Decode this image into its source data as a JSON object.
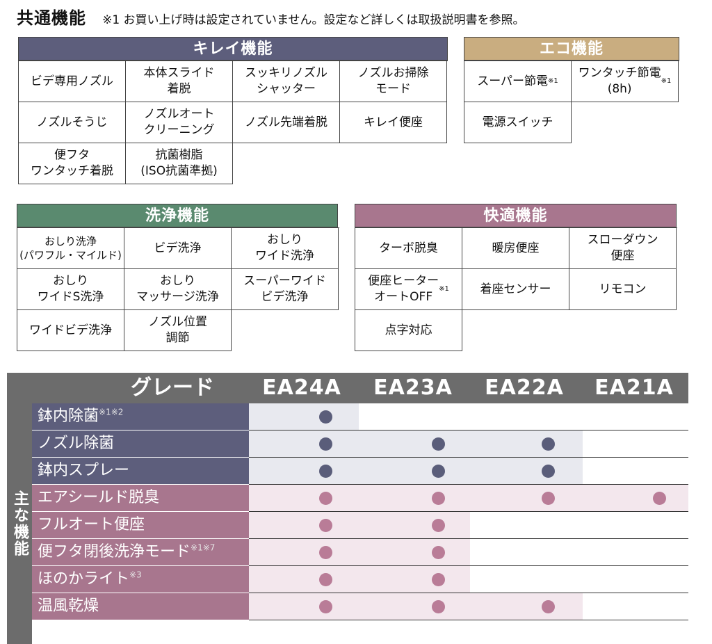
{
  "header": {
    "title": "共通機能",
    "note": "※1 お買い上げ時は設定されていません。設定など詳しくは取扱説明書を参照。"
  },
  "colors": {
    "kirei": "#5d5e7c",
    "eco": "#c9ad80",
    "senjo": "#5a8a6f",
    "kaiteki": "#a8768e",
    "grade_header": "#6c6c6c",
    "dot_blue": "#5a5d7a",
    "dot_pink": "#b97c97",
    "row_bg_blue": "#e8e9ef",
    "row_bg_pink": "#f3e7ed"
  },
  "kirei": {
    "title": "キレイ機能",
    "cells": [
      {
        "text": "ビデ専用ノズル"
      },
      {
        "text": "本体スライド\n着脱"
      },
      {
        "text": "スッキリノズル\nシャッター"
      },
      {
        "text": "ノズルお掃除\nモード"
      },
      {
        "text": "ノズルそうじ"
      },
      {
        "text": "ノズルオート\nクリーニング"
      },
      {
        "text": "ノズル先端着脱"
      },
      {
        "text": "キレイ便座"
      },
      {
        "text": "便フタ\nワンタッチ着脱"
      },
      {
        "text": "抗菌樹脂\n(ISO抗菌準拠)"
      }
    ]
  },
  "eco": {
    "title": "エコ機能",
    "cells": [
      {
        "text": "スーパー節電",
        "sup": "※1"
      },
      {
        "text": "ワンタッチ節電\n(8h)",
        "sup": "※1"
      },
      {
        "text": "電源スイッチ"
      }
    ]
  },
  "senjo": {
    "title": "洗浄機能",
    "cells": [
      {
        "text": "おしり洗浄\n(パワフル・マイルド)",
        "small": true
      },
      {
        "text": "ビデ洗浄"
      },
      {
        "text": "おしり\nワイド洗浄"
      },
      {
        "text": "おしり\nワイドS洗浄"
      },
      {
        "text": "おしり\nマッサージ洗浄"
      },
      {
        "text": "スーパーワイド\nビデ洗浄"
      },
      {
        "text": "ワイドビデ洗浄"
      },
      {
        "text": "ノズル位置\n調節"
      }
    ]
  },
  "kaiteki": {
    "title": "快適機能",
    "cells": [
      {
        "text": "ターボ脱臭"
      },
      {
        "text": "暖房便座"
      },
      {
        "text": "スローダウン\n便座"
      },
      {
        "text": "便座ヒーター\nオートOFF",
        "sup": "※1"
      },
      {
        "text": "着座センサー"
      },
      {
        "text": "リモコン"
      },
      {
        "text": "点字対応"
      }
    ]
  },
  "grade": {
    "label": "グレード",
    "models": [
      "EA24A",
      "EA23A",
      "EA22A",
      "EA21A"
    ],
    "side_label": "主な機能",
    "rows": [
      {
        "name": "鉢内除菌",
        "sup": "※1※2",
        "color": "blue",
        "has": [
          true,
          false,
          false,
          false
        ]
      },
      {
        "name": "ノズル除菌",
        "sup": "",
        "color": "blue",
        "has": [
          true,
          true,
          true,
          false
        ]
      },
      {
        "name": "鉢内スプレー",
        "sup": "",
        "color": "blue",
        "has": [
          true,
          true,
          true,
          false
        ]
      },
      {
        "name": "エアシールド脱臭",
        "sup": "",
        "color": "pink",
        "has": [
          true,
          true,
          true,
          true
        ]
      },
      {
        "name": "フルオート便座",
        "sup": "",
        "color": "pink",
        "has": [
          true,
          true,
          false,
          false
        ]
      },
      {
        "name": "便フタ閉後洗浄モード",
        "sup": "※1※7",
        "color": "pink",
        "has": [
          true,
          true,
          false,
          false
        ]
      },
      {
        "name": "ほのかライト",
        "sup": "※3",
        "color": "pink",
        "has": [
          true,
          true,
          false,
          false
        ]
      },
      {
        "name": "温風乾燥",
        "sup": "",
        "color": "pink",
        "has": [
          true,
          true,
          true,
          false
        ]
      }
    ]
  }
}
